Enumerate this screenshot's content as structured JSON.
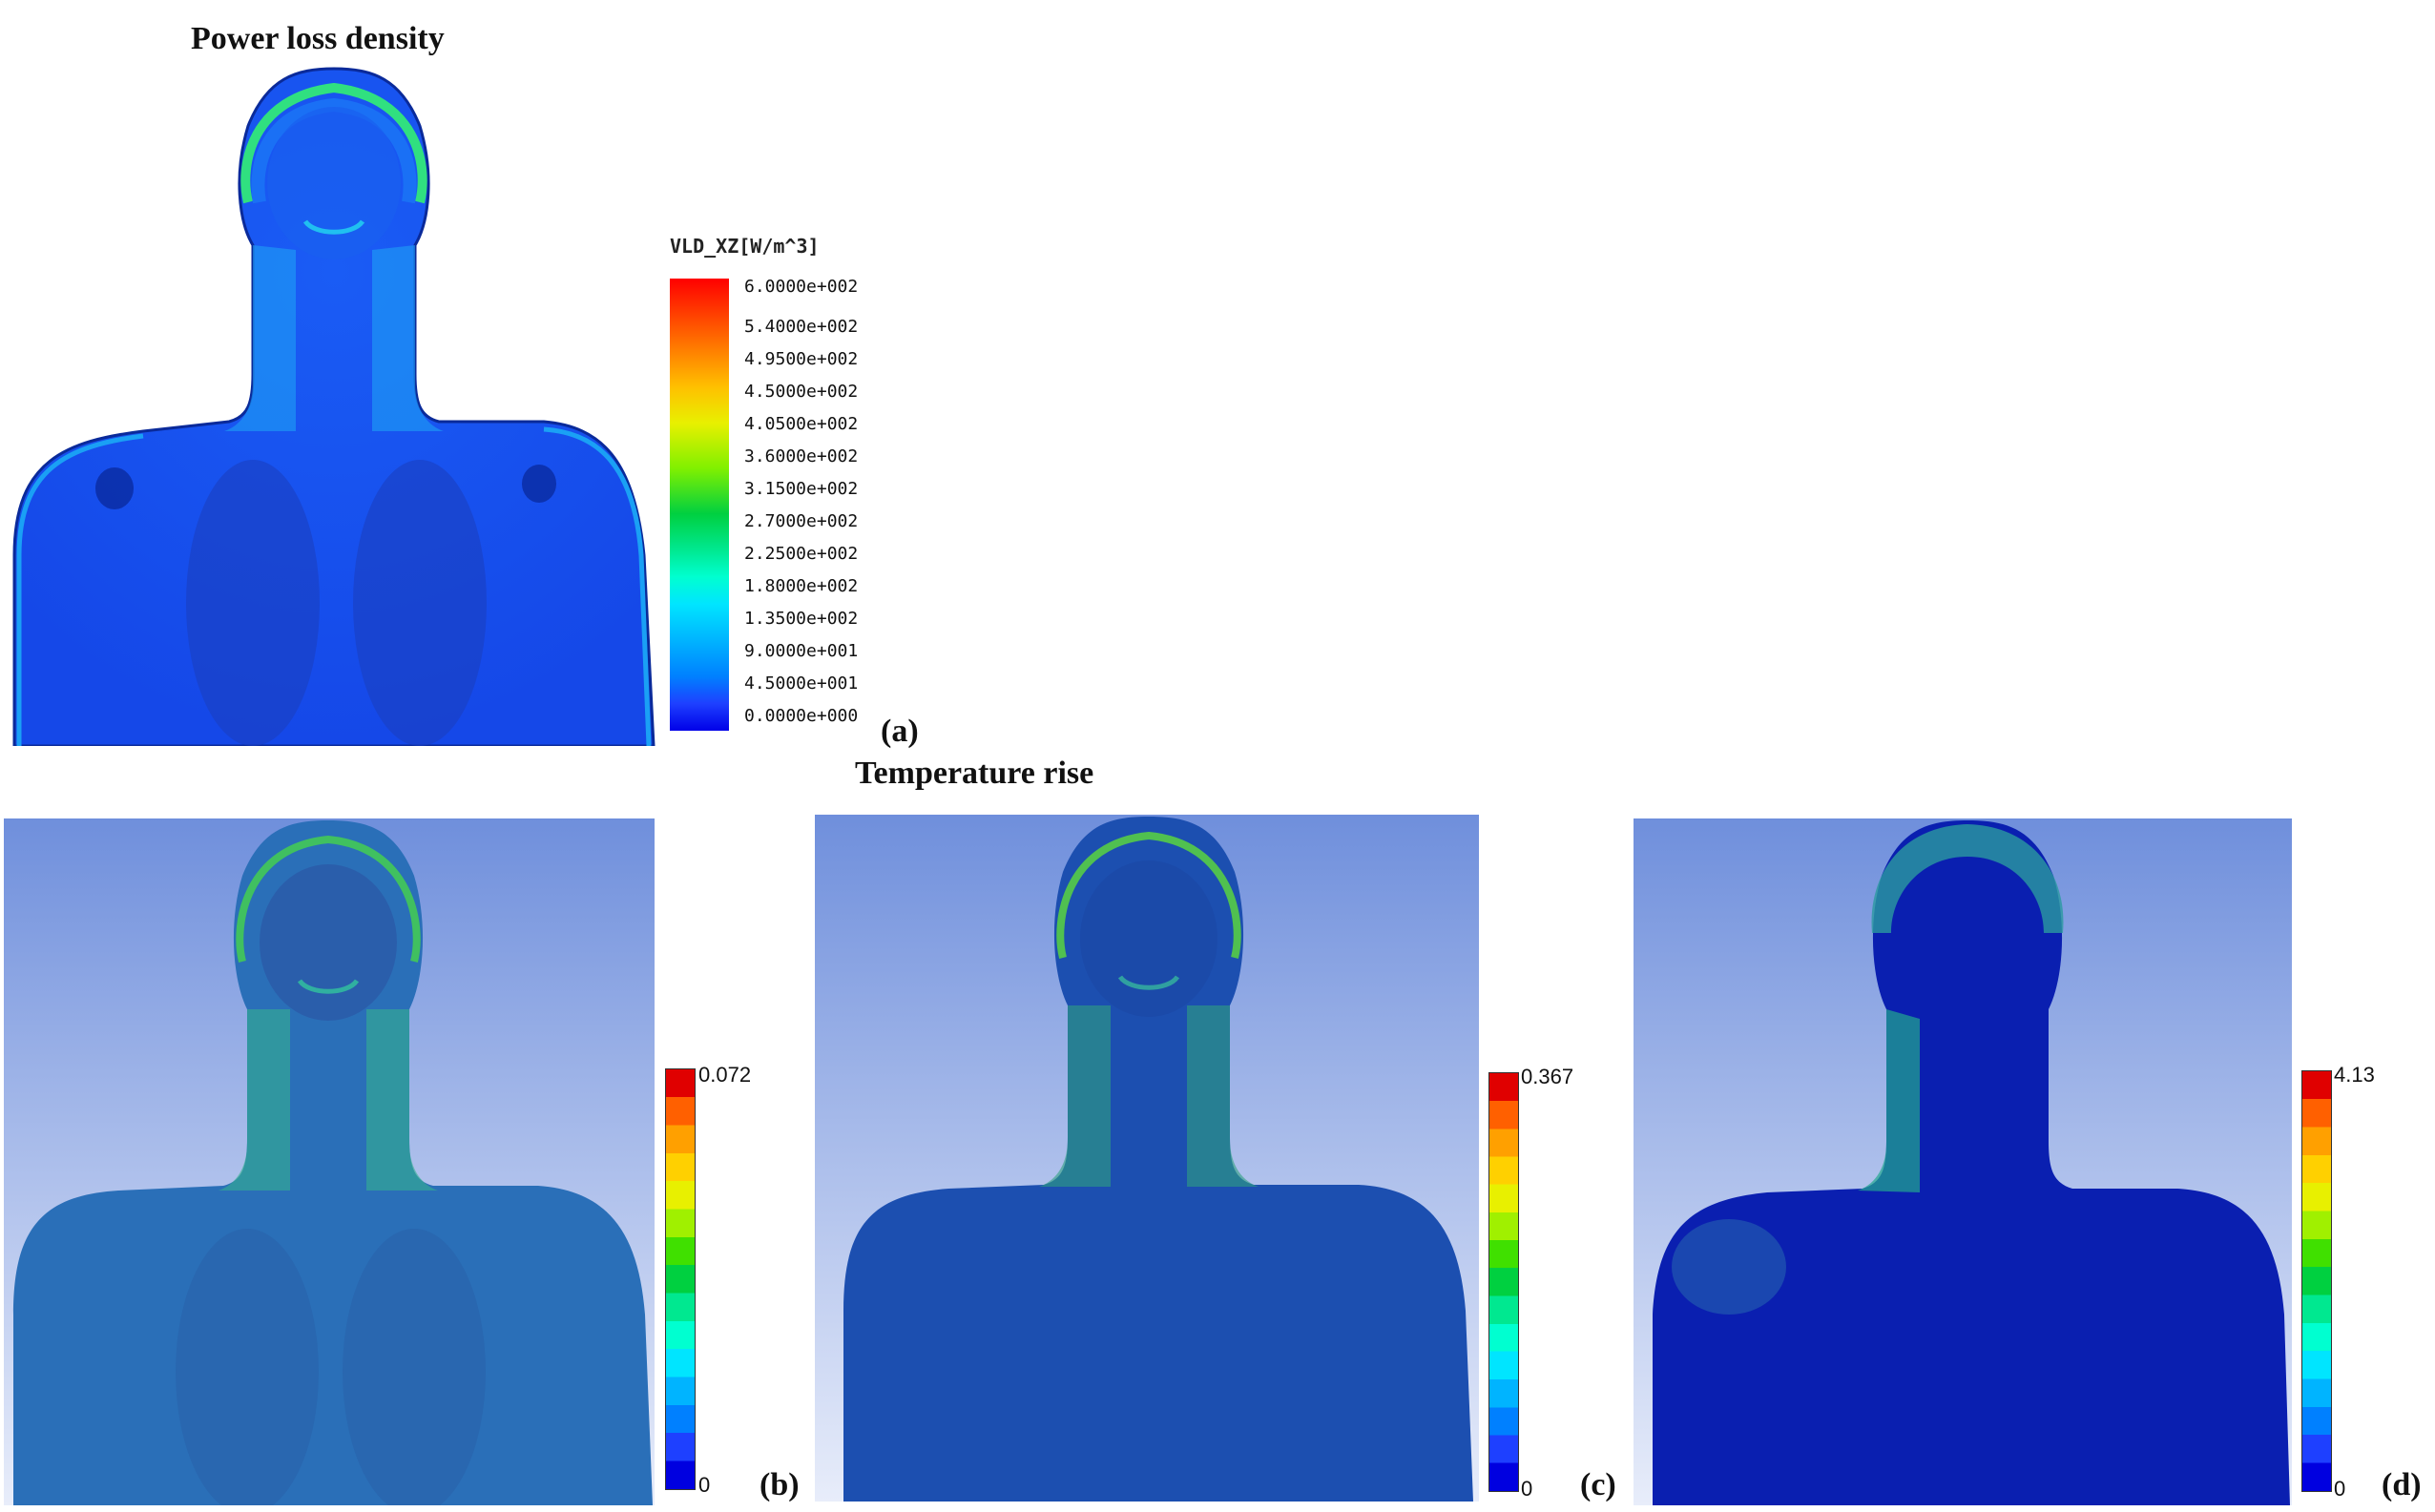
{
  "titles": {
    "top": "Power loss density",
    "middle": "Temperature rise"
  },
  "panel_labels": {
    "a": "(a)",
    "b": "(b)",
    "c": "(c)",
    "d": "(d)"
  },
  "legend_a": {
    "title": "VLD_XZ[W/m^3]",
    "ticks": [
      "6.0000e+002",
      "5.4000e+002",
      "4.9500e+002",
      "4.5000e+002",
      "4.0500e+002",
      "3.6000e+002",
      "3.1500e+002",
      "2.7000e+002",
      "2.2500e+002",
      "1.8000e+002",
      "1.3500e+002",
      "9.0000e+001",
      "4.5000e+001",
      "0.0000e+000"
    ]
  },
  "legend_b": {
    "max": "0.072",
    "min": "0"
  },
  "legend_c": {
    "max": "0.367",
    "min": "0"
  },
  "legend_d": {
    "max": "4.13",
    "min": "0"
  },
  "colors": {
    "scale": [
      "#0000e0",
      "#1e40ff",
      "#0080ff",
      "#00b4ff",
      "#00e5ff",
      "#00ffd0",
      "#00e890",
      "#00d040",
      "#40e000",
      "#a0f000",
      "#e8f000",
      "#ffd000",
      "#ffa000",
      "#ff6000",
      "#ff2000"
    ],
    "body_a": "#1a55f0",
    "bg_gradient_top": "#6f8fdc",
    "bg_gradient_bottom": "#e6ecfa"
  }
}
